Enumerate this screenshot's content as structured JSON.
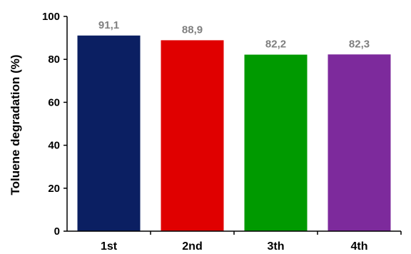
{
  "chart_data": {
    "type": "bar",
    "categories": [
      "1st",
      "2nd",
      "3th",
      "4th"
    ],
    "values": [
      91.1,
      88.9,
      82.2,
      82.3
    ],
    "value_labels": [
      "91,1",
      "88,9",
      "82,2",
      "82,3"
    ],
    "title": "",
    "xlabel": "",
    "ylabel": "Toluene degradation (%)",
    "ylim": [
      0,
      100
    ],
    "yticks": [
      0,
      20,
      40,
      60,
      80,
      100
    ],
    "ytick_labels": [
      "0",
      "20",
      "40",
      "60",
      "80",
      "100"
    ],
    "grid": false,
    "legend": "none",
    "colors": [
      "#0b1f62",
      "#e00000",
      "#009a00",
      "#7d2a9c"
    ],
    "value_label_color": "#7f7f7f"
  }
}
